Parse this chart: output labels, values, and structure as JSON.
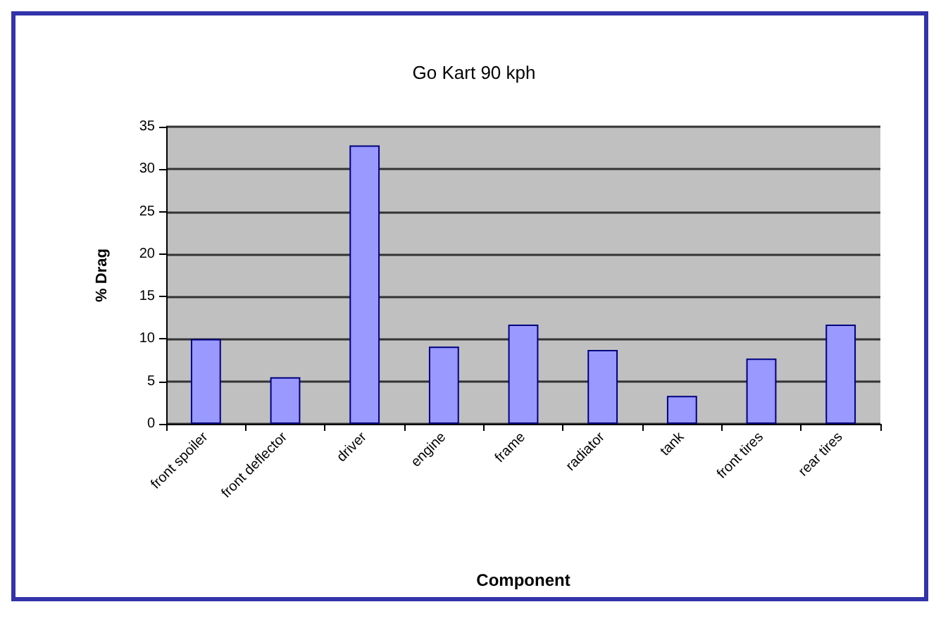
{
  "chart_data": {
    "type": "bar",
    "title": "Go Kart 90 kph",
    "xlabel": "Component",
    "ylabel": "% Drag",
    "categories": [
      "front spoiler",
      "front deflector",
      "driver",
      "engine",
      "frame",
      "radiator",
      "tank",
      "front tires",
      "rear tires"
    ],
    "values": [
      10,
      5.5,
      32.8,
      9.1,
      11.7,
      8.7,
      3.3,
      7.7,
      11.7
    ],
    "color": "#9999ff",
    "ylim": [
      0,
      35
    ],
    "yticks": [
      0,
      5,
      10,
      15,
      20,
      25,
      30,
      35
    ],
    "grid": "y"
  }
}
